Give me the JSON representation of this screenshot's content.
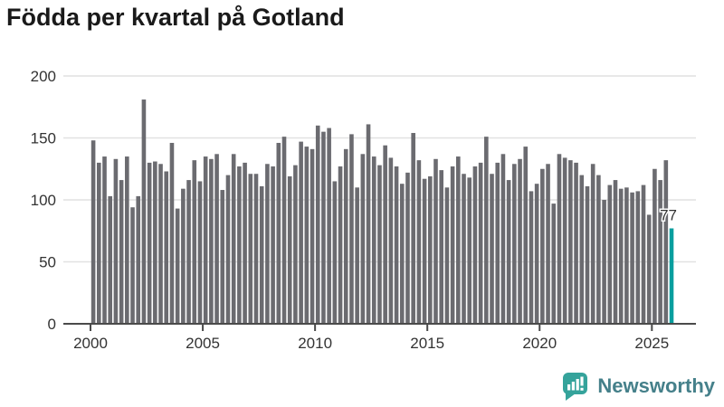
{
  "title": "Födda per kvartal på Gotland",
  "footer": {
    "brand": "Newsworthy",
    "brand_color": "#45808a",
    "icon_color": "#35a39b",
    "icon": "bar-chart-speech-bubble-icon"
  },
  "chart_data": {
    "type": "bar",
    "title": "Födda per kvartal på Gotland",
    "xlabel": "",
    "ylabel": "",
    "ylim": [
      0,
      200
    ],
    "grid": true,
    "legend": "none",
    "bar_color": "#6b6b70",
    "highlight_color": "#089e9e",
    "axis_color": "#4a4a4a",
    "grid_color": "#e1e1e1",
    "tick_label_color": "#333333",
    "y_axis": {
      "ticks": [
        0,
        50,
        100,
        150,
        200
      ]
    },
    "x_axis": {
      "ticks": [
        "2000",
        "2005",
        "2010",
        "2015",
        "2020",
        "2025"
      ]
    },
    "highlight": {
      "index": 103,
      "label": "77",
      "value": 77
    },
    "categories": [
      "2000-Q1",
      "2000-Q2",
      "2000-Q3",
      "2000-Q4",
      "2001-Q1",
      "2001-Q2",
      "2001-Q3",
      "2001-Q4",
      "2002-Q1",
      "2002-Q2",
      "2002-Q3",
      "2002-Q4",
      "2003-Q1",
      "2003-Q2",
      "2003-Q3",
      "2003-Q4",
      "2004-Q1",
      "2004-Q2",
      "2004-Q3",
      "2004-Q4",
      "2005-Q1",
      "2005-Q2",
      "2005-Q3",
      "2005-Q4",
      "2006-Q1",
      "2006-Q2",
      "2006-Q3",
      "2006-Q4",
      "2007-Q1",
      "2007-Q2",
      "2007-Q3",
      "2007-Q4",
      "2008-Q1",
      "2008-Q2",
      "2008-Q3",
      "2008-Q4",
      "2009-Q1",
      "2009-Q2",
      "2009-Q3",
      "2009-Q4",
      "2010-Q1",
      "2010-Q2",
      "2010-Q3",
      "2010-Q4",
      "2011-Q1",
      "2011-Q2",
      "2011-Q3",
      "2011-Q4",
      "2012-Q1",
      "2012-Q2",
      "2012-Q3",
      "2012-Q4",
      "2013-Q1",
      "2013-Q2",
      "2013-Q3",
      "2013-Q4",
      "2014-Q1",
      "2014-Q2",
      "2014-Q3",
      "2014-Q4",
      "2015-Q1",
      "2015-Q2",
      "2015-Q3",
      "2015-Q4",
      "2016-Q1",
      "2016-Q2",
      "2016-Q3",
      "2016-Q4",
      "2017-Q1",
      "2017-Q2",
      "2017-Q3",
      "2017-Q4",
      "2018-Q1",
      "2018-Q2",
      "2018-Q3",
      "2018-Q4",
      "2019-Q1",
      "2019-Q2",
      "2019-Q3",
      "2019-Q4",
      "2020-Q1",
      "2020-Q2",
      "2020-Q3",
      "2020-Q4",
      "2021-Q1",
      "2021-Q2",
      "2021-Q3",
      "2021-Q4",
      "2022-Q1",
      "2022-Q2",
      "2022-Q3",
      "2022-Q4",
      "2023-Q1",
      "2023-Q2",
      "2023-Q3",
      "2023-Q4",
      "2024-Q1",
      "2024-Q2",
      "2024-Q3",
      "2024-Q4",
      "2025-Q1",
      "2025-Q2",
      "2025-Q3",
      "2025-Q4"
    ],
    "values": [
      148,
      130,
      135,
      103,
      133,
      116,
      135,
      94,
      103,
      181,
      130,
      131,
      129,
      123,
      146,
      93,
      109,
      116,
      132,
      115,
      135,
      133,
      137,
      108,
      120,
      137,
      127,
      130,
      121,
      121,
      111,
      129,
      127,
      146,
      151,
      119,
      128,
      147,
      143,
      141,
      160,
      155,
      158,
      115,
      127,
      141,
      153,
      110,
      137,
      161,
      135,
      128,
      144,
      134,
      127,
      113,
      122,
      154,
      132,
      117,
      119,
      133,
      124,
      110,
      127,
      135,
      121,
      118,
      127,
      130,
      151,
      121,
      130,
      137,
      116,
      129,
      133,
      143,
      107,
      113,
      125,
      129,
      97,
      137,
      134,
      132,
      130,
      120,
      111,
      129,
      120,
      100,
      112,
      116,
      109,
      110,
      106,
      107,
      112,
      88,
      125,
      116,
      132,
      77
    ]
  }
}
